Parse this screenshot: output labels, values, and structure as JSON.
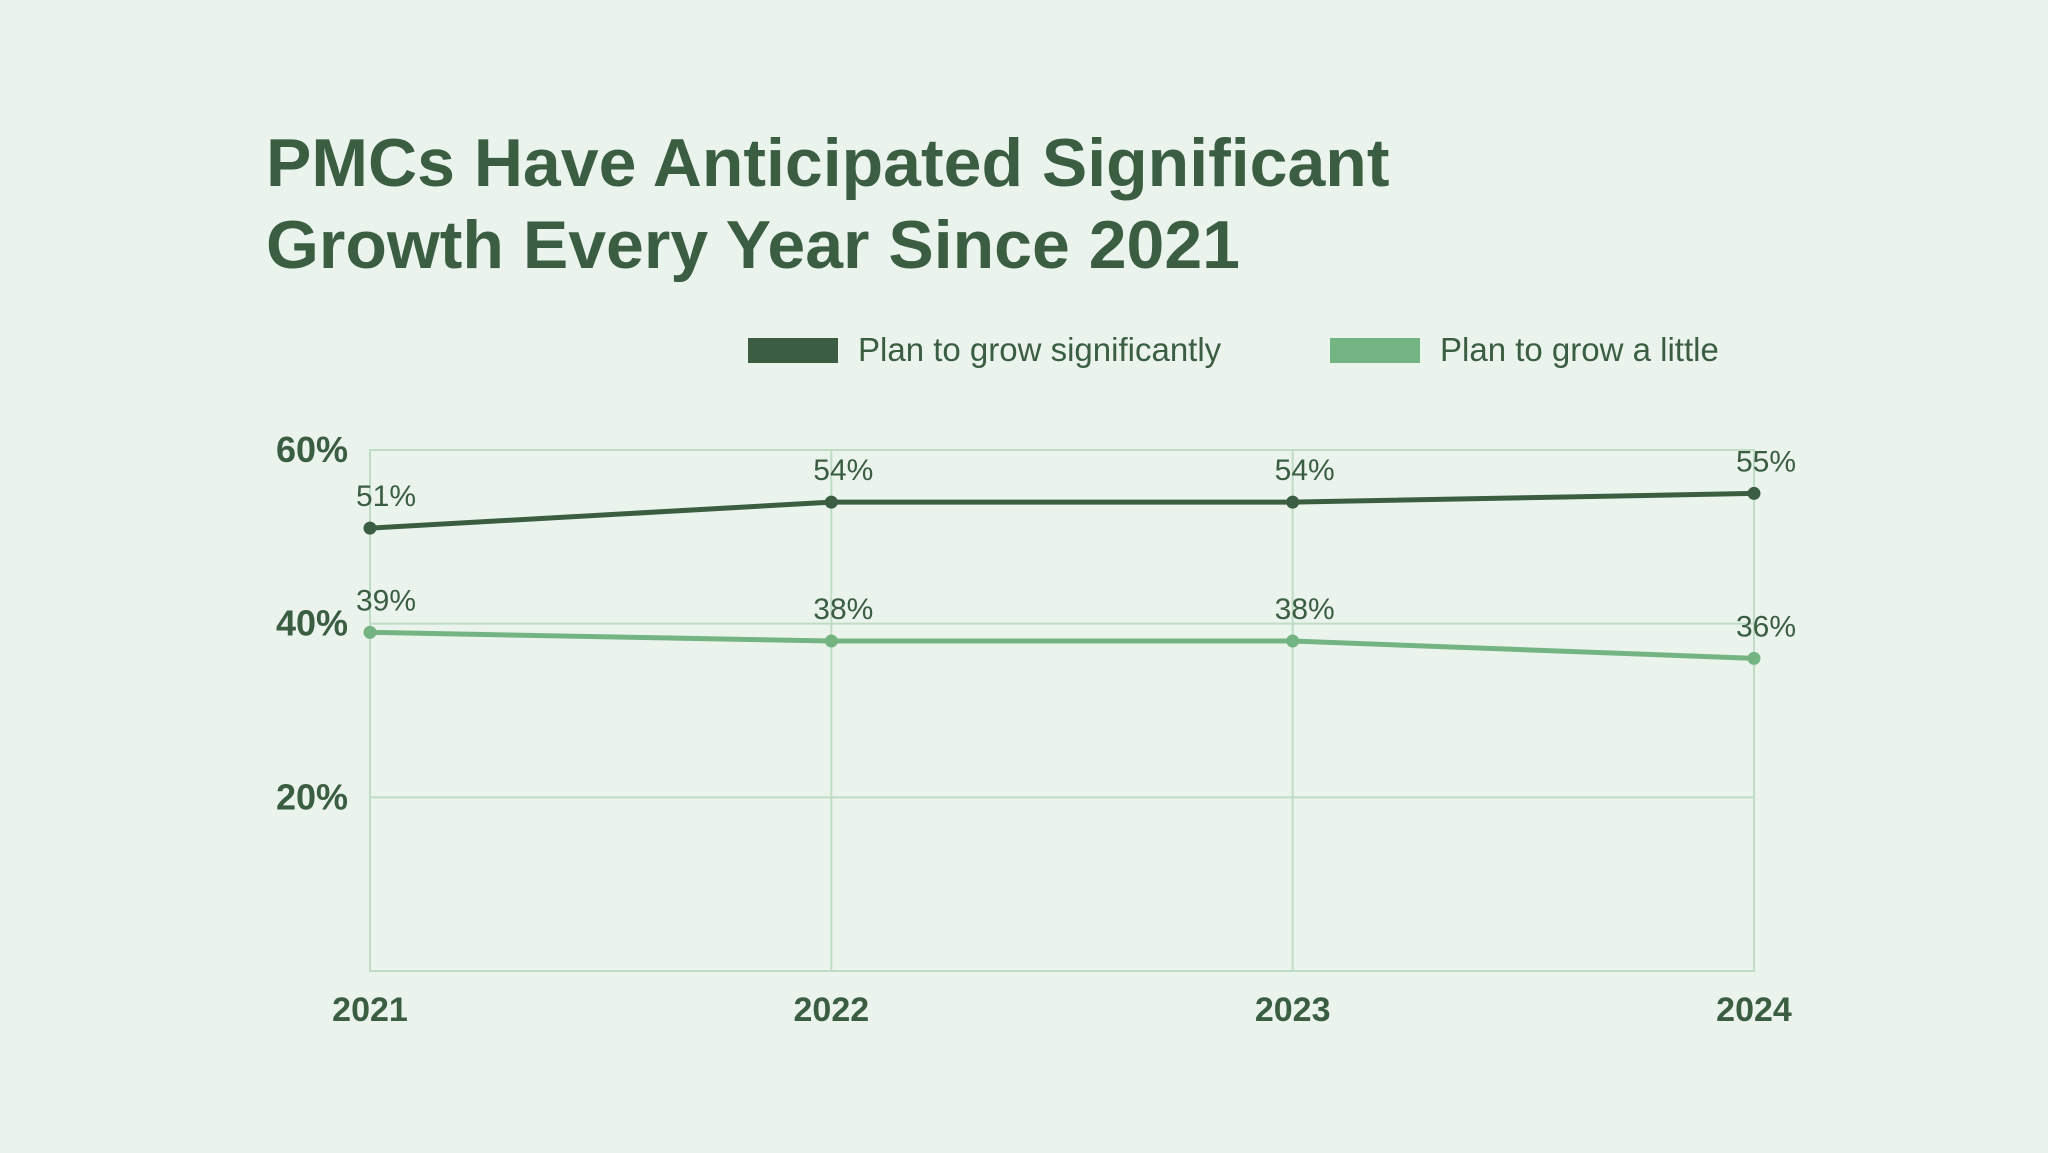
{
  "title_lines": [
    "PMCs Have Anticipated Significant",
    "Growth Every Year Since 2021"
  ],
  "colors": {
    "background": "#eaf4ec",
    "text": "#3b5e43",
    "grid": "#bfdcc5",
    "series_dark": "#3b5e43",
    "series_light": "#74b483"
  },
  "chart_data": {
    "type": "line",
    "title": "PMCs Have Anticipated Significant Growth Every Year Since 2021",
    "x": [
      "2021",
      "2022",
      "2023",
      "2024"
    ],
    "xlabel": "",
    "ylabel": "",
    "ylim": [
      0,
      60
    ],
    "y_ticks": [
      20,
      40,
      60
    ],
    "y_tick_labels": [
      "20%",
      "40%",
      "60%"
    ],
    "grid": true,
    "legend_position": "top-right",
    "series": [
      {
        "name": "Plan to grow significantly",
        "values": [
          51,
          54,
          54,
          55
        ],
        "labels": [
          "51%",
          "54%",
          "54%",
          "55%"
        ],
        "color": "#3b5e43"
      },
      {
        "name": "Plan to grow a little",
        "values": [
          39,
          38,
          38,
          36
        ],
        "labels": [
          "39%",
          "38%",
          "38%",
          "36%"
        ],
        "color": "#74b483"
      }
    ]
  }
}
